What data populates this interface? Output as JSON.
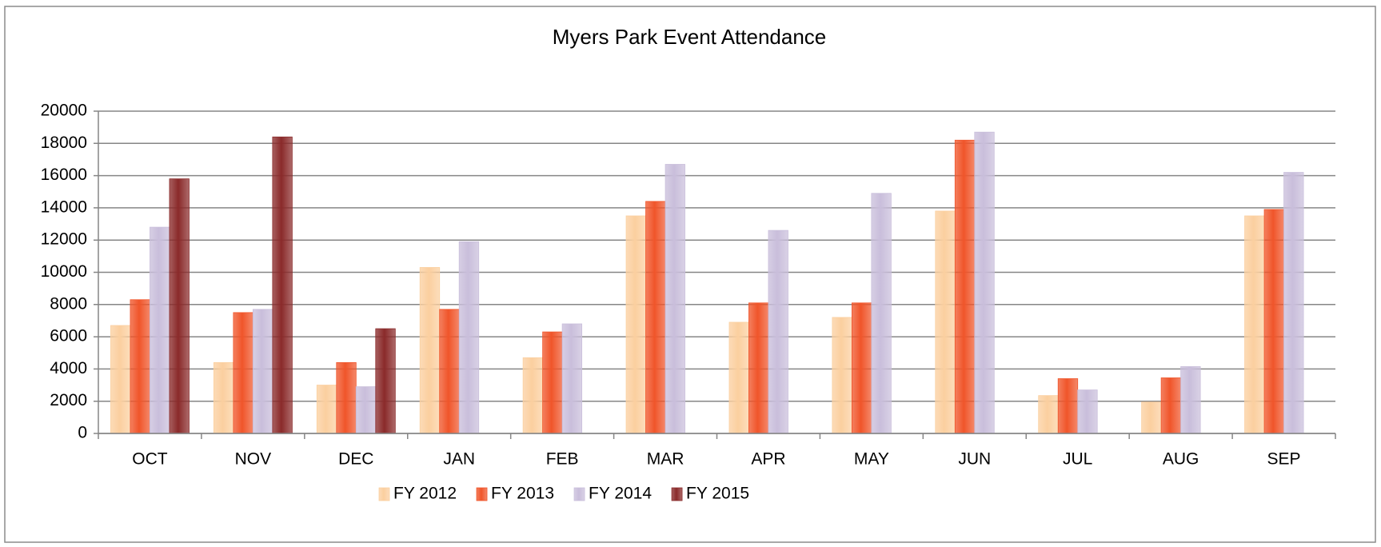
{
  "chart_data": {
    "type": "bar",
    "title": "Myers Park Event Attendance",
    "categories": [
      "OCT",
      "NOV",
      "DEC",
      "JAN",
      "FEB",
      "MAR",
      "APR",
      "MAY",
      "JUN",
      "JUL",
      "AUG",
      "SEP"
    ],
    "series": [
      {
        "name": "FY 2012",
        "color": "#fbcf9f",
        "values": [
          6700,
          4400,
          3000,
          10300,
          4700,
          13500,
          6900,
          7200,
          13800,
          2350,
          1950,
          13500
        ]
      },
      {
        "name": "FY 2013",
        "color": "#f0552a",
        "values": [
          8300,
          7500,
          4400,
          7700,
          6300,
          14400,
          8100,
          8100,
          18200,
          3400,
          3450,
          13900
        ]
      },
      {
        "name": "FY 2014",
        "color": "#c9bedb",
        "values": [
          12800,
          7700,
          2900,
          11900,
          6800,
          16700,
          12600,
          14900,
          18700,
          2700,
          4150,
          16200
        ]
      },
      {
        "name": "FY 2015",
        "color": "#8a2a2a",
        "values": [
          15800,
          18400,
          6500,
          null,
          null,
          null,
          null,
          null,
          null,
          null,
          null,
          null
        ]
      }
    ],
    "ylim": [
      0,
      20000
    ],
    "yticks": [
      0,
      2000,
      4000,
      6000,
      8000,
      10000,
      12000,
      14000,
      16000,
      18000,
      20000
    ],
    "grid": true,
    "legend": "bottom"
  }
}
